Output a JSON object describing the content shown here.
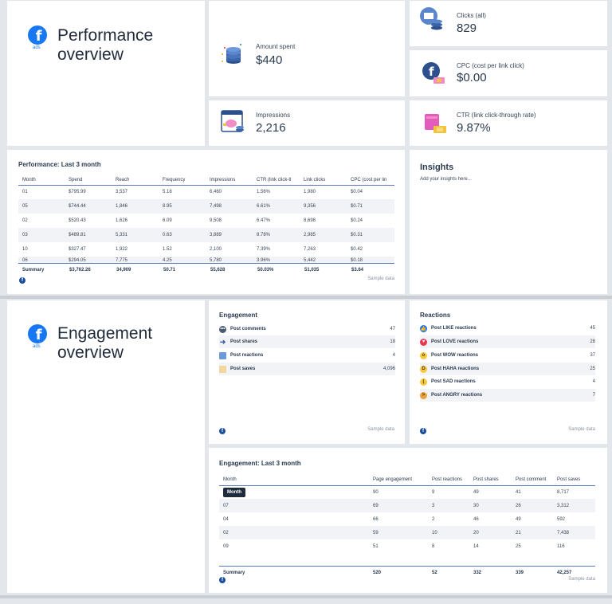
{
  "colors": {
    "accent": "#1877f2",
    "rule": "#5b79b8"
  },
  "performance": {
    "title": "Performance\noverview",
    "ads_tag": "ads",
    "kpis": {
      "amount_spent": {
        "label": "Amount spent",
        "value": "$440",
        "icon": "coins-stack-icon"
      },
      "impressions": {
        "label": "Impressions",
        "value": "2,216",
        "icon": "piggy-bank-icon"
      },
      "clicks": {
        "label": "Clicks (all)",
        "value": "829",
        "icon": "cash-register-icon"
      },
      "cpc": {
        "label": "CPC (cost per link click)",
        "value": "$0.00",
        "icon": "facebook-coupon-icon"
      },
      "ctr": {
        "label": "CTR (link click-through rate)",
        "value": "9.87%",
        "icon": "shopping-bag-icon"
      }
    },
    "table": {
      "title": "Performance: Last 3 month",
      "headers": [
        "Month",
        "Spend",
        "Reach",
        "Frequency",
        "Impressions",
        "CTR (link click-tl",
        "Link clicks",
        "CPC (cost per lin"
      ],
      "rows": [
        [
          "01",
          "$795.99",
          "3,537",
          "5.18",
          "6,460",
          "1.56%",
          "1,980",
          "$0.04"
        ],
        [
          "05",
          "$744.44",
          "1,846",
          "8.95",
          "7,498",
          "6.61%",
          "9,356",
          "$0.71"
        ],
        [
          "02",
          "$520.43",
          "1,626",
          "6.09",
          "9,508",
          "6.47%",
          "8,698",
          "$0.24"
        ],
        [
          "03",
          "$489.81",
          "5,331",
          "0.63",
          "3,889",
          "8.78%",
          "2,985",
          "$0.31"
        ],
        [
          "10",
          "$327.47",
          "1,922",
          "1.52",
          "2,100",
          "7.39%",
          "7,263",
          "$0.42"
        ],
        [
          "06",
          "$294.05",
          "7,775",
          "4.25",
          "5,780",
          "3.96%",
          "5,442",
          "$0.18"
        ]
      ],
      "summary": [
        "Summary",
        "$3,762.26",
        "34,909",
        "50.71",
        "55,628",
        "50.03%",
        "51,035",
        "$3.64"
      ],
      "sample": "Sample data"
    },
    "insights": {
      "title": "Insights",
      "body": "Add your insights here..."
    }
  },
  "engagement": {
    "title": "Engagement\noverview",
    "ads_tag": "ads",
    "list": {
      "title": "Engagement",
      "items": [
        {
          "label": "Post comments",
          "value": "47",
          "icon": "comment-icon"
        },
        {
          "label": "Post shares",
          "value": "18",
          "icon": "share-arrow-icon"
        },
        {
          "label": "Post reactions",
          "value": "4",
          "icon": "reactions-icon"
        },
        {
          "label": "Post saves",
          "value": "4,096",
          "icon": "save-icon"
        }
      ],
      "sample": "Sample data"
    },
    "reactions": {
      "title": "Reactions",
      "items": [
        {
          "label": "Post LIKE reactions",
          "value": "45",
          "icon": "like-icon"
        },
        {
          "label": "Post LOVE reactions",
          "value": "28",
          "icon": "love-icon"
        },
        {
          "label": "Post WOW reactions",
          "value": "37",
          "icon": "wow-icon"
        },
        {
          "label": "Post HAHA reactions",
          "value": "25",
          "icon": "haha-icon"
        },
        {
          "label": "Post SAD reactions",
          "value": "4",
          "icon": "sad-icon"
        },
        {
          "label": "Post ANGRY reactions",
          "value": "7",
          "icon": "angry-icon"
        }
      ],
      "sample": "Sample data"
    },
    "table": {
      "title": "Engagement: Last 3 month",
      "headers": [
        "Month",
        "Page engagement",
        "Post reactions",
        "Post shares",
        "Post comment",
        "Post saves"
      ],
      "tooltip": "Month",
      "rows": [
        [
          "",
          "90",
          "9",
          "49",
          "41",
          "8,717"
        ],
        [
          "07",
          "69",
          "3",
          "30",
          "26",
          "3,312"
        ],
        [
          "04",
          "66",
          "2",
          "46",
          "49",
          "592"
        ],
        [
          "02",
          "59",
          "10",
          "20",
          "21",
          "7,438"
        ],
        [
          "09",
          "51",
          "8",
          "14",
          "25",
          "116"
        ]
      ],
      "summary": [
        "Summary",
        "520",
        "52",
        "332",
        "339",
        "42,257"
      ],
      "sample": "Sample data"
    }
  }
}
